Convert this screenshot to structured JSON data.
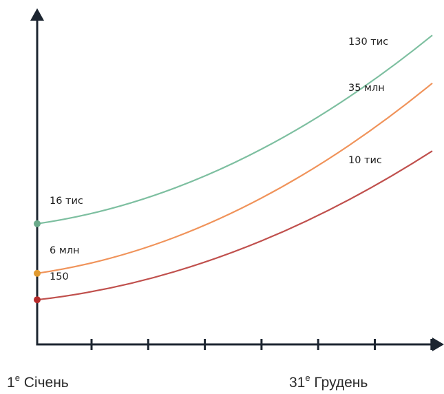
{
  "chart_data": {
    "type": "line",
    "x_start_label": {
      "num": "1",
      "sup": "е",
      "text": " Січень"
    },
    "x_end_label": {
      "num": "31",
      "sup": "е",
      "text": " Грудень"
    },
    "series": [
      {
        "color": "#7dbfa0",
        "start_label": "16 тис",
        "end_label": "130 тис",
        "y": [
          0.365,
          0.935
        ]
      },
      {
        "color": "#f0935a",
        "start_label": "6 млн",
        "end_label": "35 млн",
        "y": [
          0.215,
          0.79
        ]
      },
      {
        "color": "#c0504d",
        "start_label": "150",
        "end_label": "10 тис",
        "y": [
          0.135,
          0.585
        ]
      }
    ],
    "point_colors": [
      "#6aaa8a",
      "#e09a30",
      "#b52a2a"
    ],
    "axis_color": "#1c2530",
    "x_ticks": 7,
    "y_arrow": true,
    "x_arrow": true
  }
}
